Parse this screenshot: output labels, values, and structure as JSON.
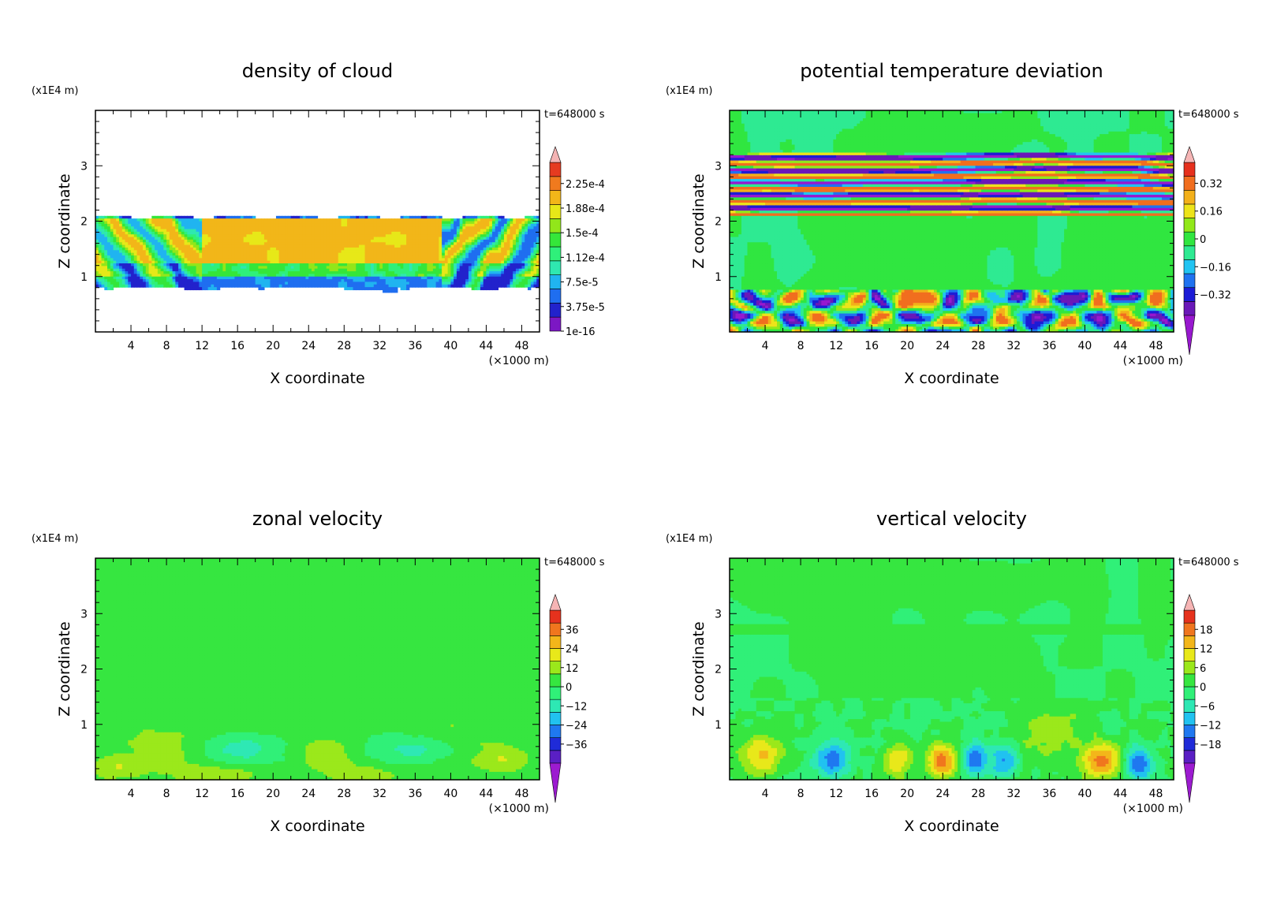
{
  "palettes": {
    "cloud": [
      "#7c17c4",
      "#2222cc",
      "#1f6ef0",
      "#20b4f0",
      "#2fe8b0",
      "#2ff07a",
      "#35e63a",
      "#92e61a",
      "#e7e818",
      "#f2b619",
      "#f07a1e",
      "#e63b20",
      "#f4b4b4"
    ],
    "theta": [
      "#9818cf",
      "#6a18b8",
      "#1c1cd6",
      "#1f72f0",
      "#21c4f2",
      "#2eea92",
      "#30e640",
      "#92e81a",
      "#ede41a",
      "#f3b01a",
      "#f16e1f",
      "#e6301d",
      "#f6b6b6"
    ],
    "wind": [
      "#9c1bd0",
      "#5a1fc4",
      "#1f2bd8",
      "#1f78f0",
      "#21c2f0",
      "#2ee8b4",
      "#30f078",
      "#36e640",
      "#9be81b",
      "#e8e81a",
      "#f3b61a",
      "#f0761e",
      "#e6321d",
      "#f6b4b4"
    ]
  },
  "chart_data": [
    {
      "id": "cloud",
      "type": "heatmap",
      "title": "density of cloud",
      "xlabel": "X coordinate",
      "ylabel": "Z coordinate",
      "x_unit": "(×1000 m)",
      "y_unit": "(x1E4 m)",
      "time_label": "t=648000 s",
      "xlim": [
        0,
        50
      ],
      "ylim": [
        0,
        4
      ],
      "xticks": [
        4,
        8,
        12,
        16,
        20,
        24,
        28,
        32,
        36,
        40,
        44,
        48
      ],
      "yticks": [
        1,
        2,
        3
      ],
      "colorbar_labels": [
        "2.25e-4",
        "1.88e-4",
        "1.5e-4",
        "1.12e-4",
        "7.5e-5",
        "3.75e-5",
        "1e-16"
      ],
      "colorbar_levels": [
        1e-16,
        1.875e-05,
        3.75e-05,
        5.625e-05,
        7.5e-05,
        9.375e-05,
        0.0001125,
        0.00013125,
        0.00015,
        0.00016875,
        0.0001875,
        0.00020625,
        0.000225
      ],
      "colorbar_extend": "max",
      "palette": "cloud",
      "field": "cloud"
    },
    {
      "id": "theta",
      "type": "heatmap",
      "title": "potential temperature deviation",
      "xlabel": "X coordinate",
      "ylabel": "Z coordinate",
      "x_unit": "(×1000 m)",
      "y_unit": "(x1E4 m)",
      "time_label": "t=648000 s",
      "xlim": [
        0,
        50
      ],
      "ylim": [
        0,
        4
      ],
      "xticks": [
        4,
        8,
        12,
        16,
        20,
        24,
        28,
        32,
        36,
        40,
        44,
        48
      ],
      "yticks": [
        1,
        2,
        3
      ],
      "colorbar_labels": [
        "0.32",
        "0.16",
        "0",
        "−0.16",
        "−0.32"
      ],
      "colorbar_levels": [
        -0.4,
        -0.32,
        -0.24,
        -0.16,
        -0.08,
        0,
        0.08,
        0.16,
        0.24,
        0.32
      ],
      "colorbar_extend": "both",
      "palette": "theta",
      "field": "theta"
    },
    {
      "id": "zonal",
      "type": "heatmap",
      "title": "zonal velocity",
      "xlabel": "X coordinate",
      "ylabel": "Z coordinate",
      "x_unit": "(×1000 m)",
      "y_unit": "(x1E4 m)",
      "time_label": "t=648000 s",
      "xlim": [
        0,
        50
      ],
      "ylim": [
        0,
        4
      ],
      "xticks": [
        4,
        8,
        12,
        16,
        20,
        24,
        28,
        32,
        36,
        40,
        44,
        48
      ],
      "yticks": [
        1,
        2,
        3
      ],
      "colorbar_labels": [
        "36",
        "24",
        "12",
        "0",
        "−12",
        "−24",
        "−36"
      ],
      "colorbar_levels": [
        -36,
        -30,
        -24,
        -18,
        -12,
        -6,
        0,
        6,
        12,
        18,
        24,
        30,
        36
      ],
      "colorbar_extend": "both",
      "palette": "wind",
      "field": "zonal"
    },
    {
      "id": "vertical",
      "type": "heatmap",
      "title": "vertical velocity",
      "xlabel": "X coordinate",
      "ylabel": "Z coordinate",
      "x_unit": "(×1000 m)",
      "y_unit": "(x1E4 m)",
      "time_label": "t=648000 s",
      "xlim": [
        0,
        50
      ],
      "ylim": [
        0,
        4
      ],
      "xticks": [
        4,
        8,
        12,
        16,
        20,
        24,
        28,
        32,
        36,
        40,
        44,
        48
      ],
      "yticks": [
        1,
        2,
        3
      ],
      "colorbar_labels": [
        "18",
        "12",
        "6",
        "0",
        "−6",
        "−12",
        "−18"
      ],
      "colorbar_levels": [
        -18,
        -15,
        -12,
        -9,
        -6,
        -3,
        0,
        3,
        6,
        9,
        12,
        15,
        18
      ],
      "colorbar_extend": "both",
      "palette": "wind",
      "field": "vertical"
    }
  ]
}
